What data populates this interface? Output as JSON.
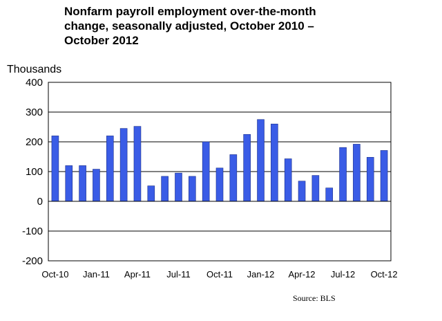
{
  "chart_data": {
    "type": "bar",
    "title_lines": [
      "Nonfarm payroll employment over-the-month",
      "change, seasonally adjusted, October 2010 –",
      "October 2012"
    ],
    "ylabel": "Thousands",
    "xlabel": "",
    "source": "Source:  BLS",
    "ylim": [
      -200,
      400
    ],
    "yticks": [
      400,
      300,
      200,
      100,
      0,
      -100,
      -200
    ],
    "grid": true,
    "bar_color": "#3a5ce6",
    "categories": [
      "Oct-10",
      "Nov-10",
      "Dec-10",
      "Jan-11",
      "Feb-11",
      "Mar-11",
      "Apr-11",
      "May-11",
      "Jun-11",
      "Jul-11",
      "Aug-11",
      "Sep-11",
      "Oct-11",
      "Nov-11",
      "Dec-11",
      "Jan-12",
      "Feb-12",
      "Mar-12",
      "Apr-12",
      "May-12",
      "Jun-12",
      "Jul-12",
      "Aug-12",
      "Sep-12",
      "Oct-12"
    ],
    "xtick_labels": [
      "Oct-10",
      "Jan-11",
      "Apr-11",
      "Jul-11",
      "Oct-11",
      "Jan-12",
      "Apr-12",
      "Jul-12",
      "Oct-12"
    ],
    "values": [
      220,
      120,
      120,
      108,
      220,
      245,
      252,
      52,
      84,
      95,
      84,
      200,
      112,
      157,
      225,
      275,
      260,
      143,
      68,
      87,
      45,
      181,
      192,
      148,
      171
    ]
  }
}
